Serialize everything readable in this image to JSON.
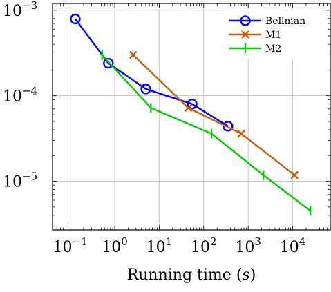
{
  "chart_data": {
    "type": "line",
    "title": "",
    "xlabel": "Running time",
    "xlabel_unit": "s",
    "ylabel": "",
    "xscale": "log",
    "yscale": "log",
    "xlim": [
      0.04,
      70000
    ],
    "ylim": [
      2.7e-06,
      0.0012
    ],
    "grid": true,
    "legend_position": "top-right",
    "x_ticks": [
      {
        "base": "10",
        "exp": "−1",
        "value": 0.1
      },
      {
        "base": "10",
        "exp": "0",
        "value": 1
      },
      {
        "base": "10",
        "exp": "1",
        "value": 10
      },
      {
        "base": "10",
        "exp": "2",
        "value": 100
      },
      {
        "base": "10",
        "exp": "3",
        "value": 1000
      },
      {
        "base": "10",
        "exp": "4",
        "value": 10000
      }
    ],
    "y_ticks": [
      {
        "base": "10",
        "exp": "−5",
        "value": 1e-05
      },
      {
        "base": "10",
        "exp": "−4",
        "value": 0.0001
      },
      {
        "base": "10",
        "exp": "−3",
        "value": 0.001
      }
    ],
    "series": [
      {
        "name": "Bellman",
        "color": "#0000ff",
        "marker": "circle",
        "x": [
          0.13,
          0.72,
          5.0,
          55,
          350
        ],
        "y": [
          0.00079,
          0.00024,
          0.00012,
          8e-05,
          4.4e-05
        ]
      },
      {
        "name": "M1",
        "color": "#c65f0f",
        "marker": "cross",
        "x": [
          2.6,
          45,
          700,
          11000
        ],
        "y": [
          0.0003,
          7.2e-05,
          3.6e-05,
          1.18e-05
        ]
      },
      {
        "name": "M2",
        "color": "#00cc00",
        "marker": "vbar",
        "x": [
          0.52,
          6.5,
          150,
          2200,
          25000
        ],
        "y": [
          0.0003,
          7.2e-05,
          3.6e-05,
          1.18e-05,
          4.5e-06
        ]
      }
    ]
  }
}
